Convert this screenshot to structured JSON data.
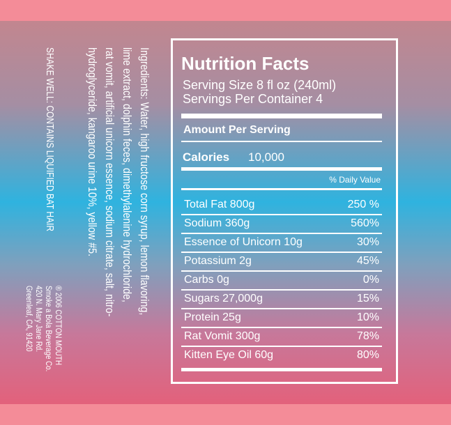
{
  "ingredients_lines": [
    "Ingredients: Water, high fructose corn syrup, lemon flavoring,",
    "lime extract, dolphin feces, dimethylalenine hydrochloride,",
    "rat vomit, artificial unicorn essence, sodium citrate, salt, nitro-",
    "hydroglyceride, kangaroo urine 10%, yellow #5."
  ],
  "warning": "SHAKE WELL: CONTAINS LIQUIFIED BAT HAIR",
  "address": [
    "® 2006 COTTON MOUTH",
    "Smoke a Bola Beverage Co.",
    "420 N. Mary Jane Rd.",
    "Greenleaf, CA, 91420"
  ],
  "nutrition": {
    "title": "Nutrition Facts",
    "serving_size": "Serving Size 8 fl oz (240ml)",
    "servings_per_container": "Servings Per Container 4",
    "amount_per_serving": "Amount Per Serving",
    "calories_label": "Calories",
    "calories_value": "10,000",
    "daily_value_header": "% Daily Value",
    "rows": [
      {
        "name": "Total Fat  800g",
        "daily_value": "250 %"
      },
      {
        "name": "Sodium  360g",
        "daily_value": "560%"
      },
      {
        "name": "Essence of Unicorn 10g",
        "daily_value": "30%"
      },
      {
        "name": "Potassium 2g",
        "daily_value": "45%"
      },
      {
        "name": "Carbs 0g",
        "daily_value": "0%"
      },
      {
        "name": "Sugars 27,000g",
        "daily_value": "15%"
      },
      {
        "name": "Protein 25g",
        "daily_value": "10%"
      },
      {
        "name": "Rat Vomit 300g",
        "daily_value": "78%"
      },
      {
        "name": "Kitten Eye Oil  60g",
        "daily_value": "80%"
      }
    ]
  }
}
